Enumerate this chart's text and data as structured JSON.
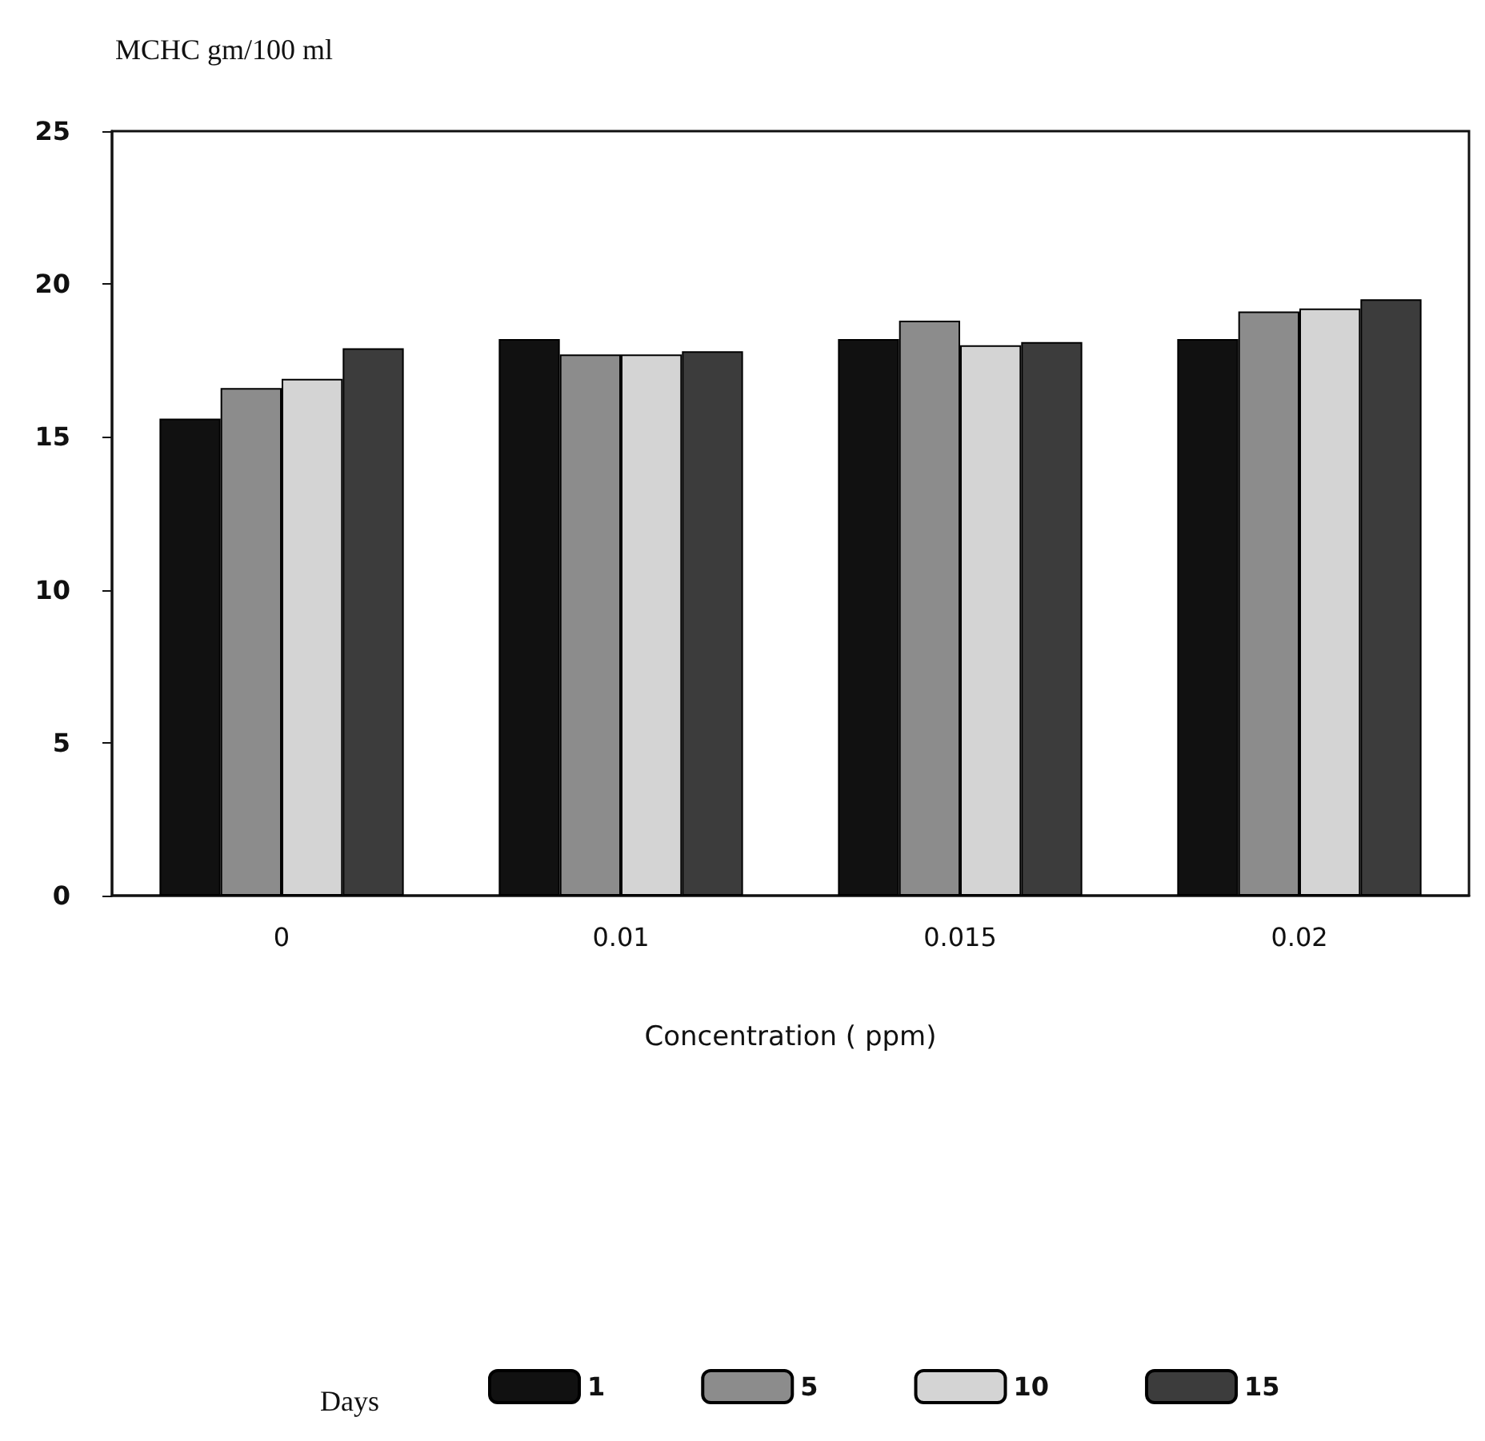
{
  "chart_data": {
    "type": "bar",
    "ylabel": "MCHC gm/100 ml",
    "xlabel": "Concentration ( ppm)",
    "legend_title": "Days",
    "categories": [
      "0",
      "0.01",
      "0.015",
      "0.02"
    ],
    "series": [
      {
        "name": "1",
        "color": "#111111",
        "values": [
          15.6,
          18.2,
          18.2,
          18.2
        ]
      },
      {
        "name": "5",
        "color": "#8c8c8c",
        "values": [
          16.6,
          17.7,
          18.8,
          19.1
        ]
      },
      {
        "name": "10",
        "color": "#d4d4d4",
        "values": [
          16.9,
          17.7,
          18.0,
          19.2
        ]
      },
      {
        "name": "15",
        "color": "#3c3c3c",
        "values": [
          17.9,
          17.8,
          18.1,
          19.5
        ]
      }
    ],
    "ylim": [
      0,
      25
    ],
    "yticks": [
      0,
      5,
      10,
      15,
      20,
      25
    ],
    "grid": false,
    "legend": "bottom"
  }
}
